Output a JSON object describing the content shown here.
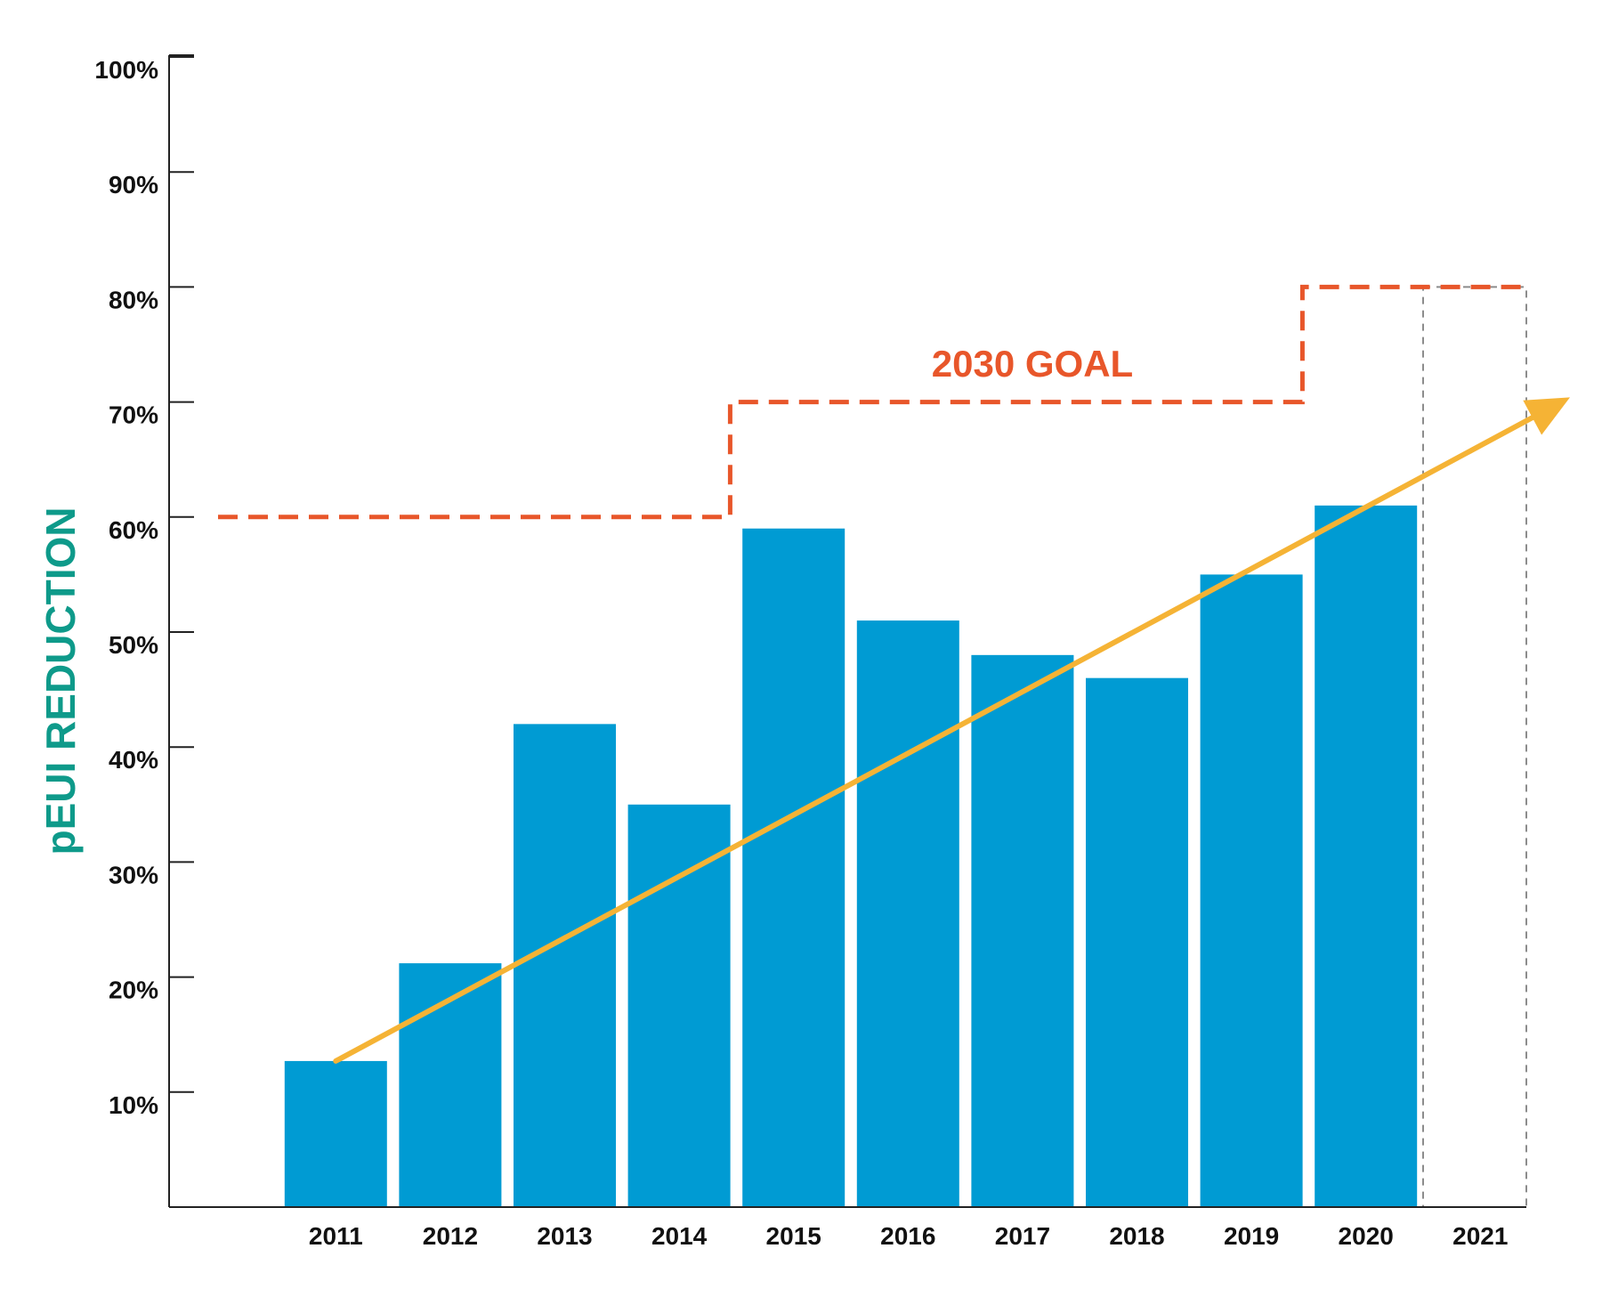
{
  "chart_data": {
    "type": "bar",
    "title": "",
    "xlabel": "",
    "ylabel": "pEUI REDUCTION",
    "categories": [
      "2011",
      "2012",
      "2013",
      "2014",
      "2015",
      "2016",
      "2017",
      "2018",
      "2019",
      "2020",
      "2021"
    ],
    "values": [
      12.7,
      21.2,
      42.0,
      35.0,
      59.0,
      51.0,
      48.0,
      46.0,
      55.0,
      61.0,
      null
    ],
    "ylim": [
      0,
      100
    ],
    "yticks": [
      10,
      20,
      30,
      40,
      50,
      60,
      70,
      80,
      90,
      100
    ],
    "ytick_labels": [
      "10%",
      "20%",
      "30%",
      "40%",
      "50%",
      "60%",
      "70%",
      "80%",
      "90%",
      "100%"
    ],
    "goal": {
      "label": "2030 GOAL",
      "steps": [
        {
          "from_category": "start",
          "to_category": "2015",
          "value": 60
        },
        {
          "from_category": "2015",
          "to_category": "2020",
          "value": 70
        },
        {
          "from_category": "2020",
          "to_category": "2021",
          "value": 80
        }
      ]
    },
    "trend": {
      "start": {
        "category": "2011",
        "value": 12.7
      },
      "end_value_beyond_2021": 70.4
    },
    "placeholder_category": "2021",
    "colors": {
      "bar": "#009BD3",
      "goal": "#E8562A",
      "trend": "#F5B335",
      "ylabel": "#0E9A8A",
      "axis": "#222222",
      "placeholder": "#8c8c8c"
    }
  }
}
